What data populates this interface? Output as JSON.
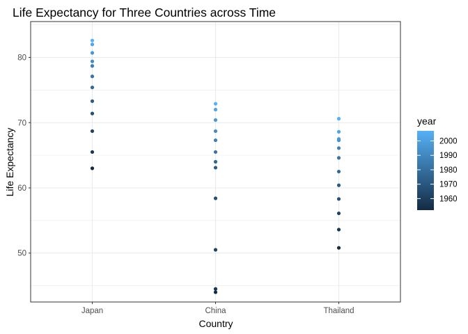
{
  "chart_data": {
    "type": "scatter",
    "title": "Life Expectancy for Three Countries across Time",
    "xlabel": "Country",
    "ylabel": "Life Expectancy",
    "categories": [
      "Japan",
      "China",
      "Thailand"
    ],
    "ylim": [
      42.5,
      85.5
    ],
    "yticks": [
      50,
      60,
      70,
      80
    ],
    "grid": true,
    "legend_position": "right",
    "color_scale": {
      "title": "year",
      "low_year": 1952,
      "high_year": 2007,
      "ticks": [
        1960,
        1970,
        1980,
        1990,
        2000
      ],
      "low_color": "#132b43",
      "high_color": "#56b1f7"
    },
    "series": [
      {
        "category": "Japan",
        "years": [
          1952,
          1957,
          1962,
          1967,
          1972,
          1977,
          1982,
          1987,
          1992,
          1997,
          2002,
          2007
        ],
        "values": [
          63.0,
          65.5,
          68.7,
          71.4,
          73.3,
          75.4,
          77.1,
          78.7,
          79.4,
          80.7,
          82.0,
          82.6
        ]
      },
      {
        "category": "China",
        "years": [
          1952,
          1957,
          1962,
          1967,
          1972,
          1977,
          1982,
          1987,
          1992,
          1997,
          2002,
          2007
        ],
        "values": [
          44.0,
          44.5,
          50.5,
          58.4,
          63.1,
          64.0,
          65.5,
          67.3,
          68.7,
          70.4,
          72.0,
          72.9
        ]
      },
      {
        "category": "Thailand",
        "years": [
          1952,
          1957,
          1962,
          1967,
          1972,
          1977,
          1982,
          1987,
          1992,
          1997,
          2002,
          2007
        ],
        "values": [
          50.8,
          53.6,
          56.1,
          58.3,
          60.4,
          62.5,
          64.6,
          66.1,
          67.3,
          67.5,
          68.6,
          70.6
        ]
      }
    ]
  }
}
